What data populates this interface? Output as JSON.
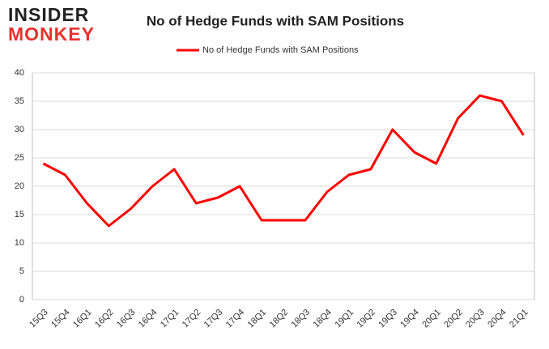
{
  "logo": {
    "line1": "INSIDER",
    "line2": "MONKEY"
  },
  "chart_data": {
    "type": "line",
    "title": "No of Hedge Funds with SAM Positions",
    "categories": [
      "15Q3",
      "15Q4",
      "16Q1",
      "16Q2",
      "16Q3",
      "16Q4",
      "17Q1",
      "17Q2",
      "17Q3",
      "17Q4",
      "18Q1",
      "18Q2",
      "18Q3",
      "18Q4",
      "19Q1",
      "19Q2",
      "19Q3",
      "19Q4",
      "20Q1",
      "20Q2",
      "20Q3",
      "20Q4",
      "21Q1"
    ],
    "series": [
      {
        "name": "No of Hedge Funds with SAM Positions",
        "color": "#ff0000",
        "values": [
          24,
          22,
          17,
          13,
          16,
          20,
          23,
          17,
          18,
          20,
          14,
          14,
          14,
          19,
          22,
          23,
          30,
          26,
          24,
          32,
          36,
          35,
          29
        ]
      }
    ],
    "ylim": [
      0,
      40
    ],
    "yticks": [
      0,
      5,
      10,
      15,
      20,
      25,
      30,
      35,
      40
    ],
    "grid": true,
    "legend": "top"
  }
}
